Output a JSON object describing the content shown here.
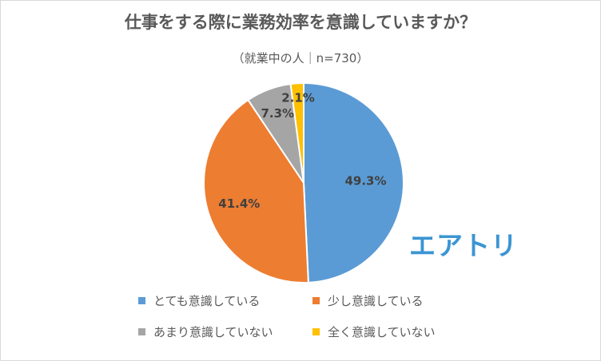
{
  "title": "仕事をする際に業務効率を意識していますか？",
  "subtitle": "（就業中の人｜n=730）",
  "logo_text": "エアトリ",
  "chart_data": {
    "type": "pie",
    "title": "仕事をする際に業務効率を意識していますか？",
    "subtitle": "（就業中の人｜n=730）",
    "start": "12 o'clock, clockwise",
    "legend_position": "bottom",
    "slices": [
      {
        "label": "とても意識している",
        "value": 49.3,
        "value_label": "49.3%",
        "color": "#5b9bd5"
      },
      {
        "label": "少し意識している",
        "value": 41.4,
        "value_label": "41.4%",
        "color": "#ed7d31"
      },
      {
        "label": "あまり意識していない",
        "value": 7.3,
        "value_label": "7.3%",
        "color": "#a5a5a5"
      },
      {
        "label": "全く意識していない",
        "value": 2.1,
        "value_label": "2.1%",
        "color": "#ffc000"
      }
    ]
  }
}
